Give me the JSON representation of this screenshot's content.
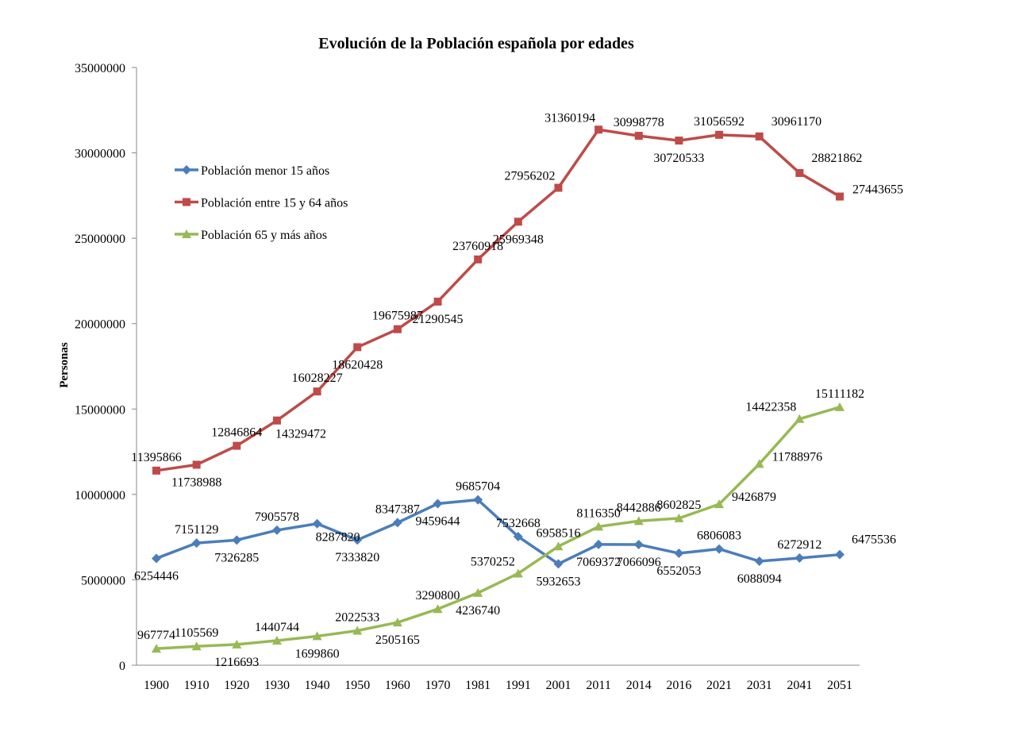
{
  "chart_data": {
    "type": "line",
    "title": "Evolución de la Población española por edades",
    "xlabel": "",
    "ylabel": "Personas",
    "ylim": [
      0,
      35000000
    ],
    "yticks": [
      "0",
      "5000000",
      "10000000",
      "15000000",
      "20000000",
      "25000000",
      "30000000",
      "35000000"
    ],
    "grid": false,
    "legend_position": "upper-left",
    "categories": [
      "1900",
      "1910",
      "1920",
      "1930",
      "1940",
      "1950",
      "1960",
      "1970",
      "1981",
      "1991",
      "2001",
      "2011",
      "2014",
      "2016",
      "2021",
      "2031",
      "2041",
      "2051"
    ],
    "series": [
      {
        "name": "Población menor 15 años",
        "color": "#4a7ebb",
        "marker": "diamond",
        "values": [
          6254446,
          7151129,
          7326285,
          7905578,
          8287820,
          7333820,
          8347387,
          9459644,
          9685704,
          7532668,
          5932653,
          7069372,
          7066096,
          6552053,
          6806083,
          6088094,
          6272912,
          6475536
        ]
      },
      {
        "name": "Población entre 15 y 64 años",
        "color": "#be4b48",
        "marker": "square",
        "values": [
          11395866,
          11738988,
          12846864,
          14329472,
          16028227,
          18620428,
          19675987,
          21290545,
          23760918,
          25969348,
          27956202,
          31360194,
          30998778,
          30720533,
          31056592,
          30961170,
          28821862,
          27443655
        ]
      },
      {
        "name": "Población 65 y más años",
        "color": "#98b954",
        "marker": "triangle",
        "values": [
          967774,
          1105569,
          1216693,
          1440744,
          1699860,
          2022533,
          2505165,
          3290800,
          4236740,
          5370252,
          6958516,
          8116350,
          8442886,
          8602825,
          9426879,
          11788976,
          14422358,
          15111182
        ]
      }
    ]
  }
}
